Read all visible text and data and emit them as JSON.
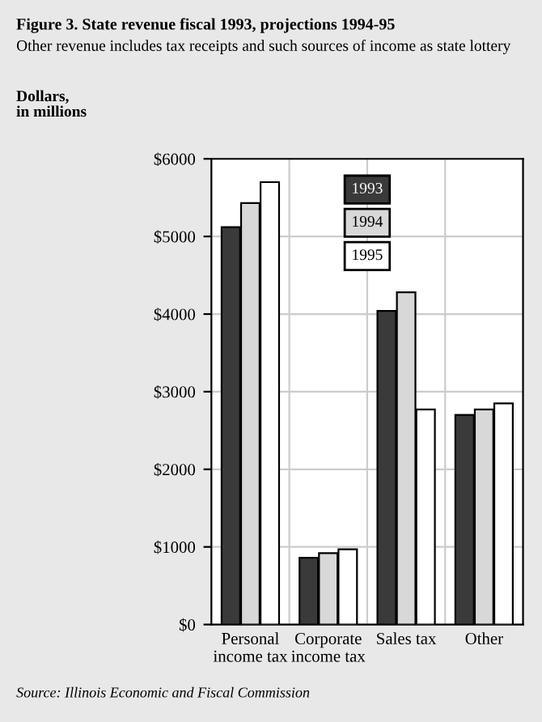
{
  "chart_data": {
    "type": "bar",
    "title": "Figure 3. State revenue fiscal 1993, projections 1994-95",
    "subtitle": "Other revenue includes tax receipts and such sources of income as state lottery",
    "ylabel": "Dollars,\nin millions",
    "categories": [
      "Personal\nincome tax",
      "Corporate\nincome tax",
      "Sales tax",
      "Other"
    ],
    "series": [
      {
        "name": "1993",
        "color": "#3a3a3a",
        "values": [
          5120,
          860,
          4040,
          2700
        ]
      },
      {
        "name": "1994",
        "color": "#d8d8d8",
        "values": [
          5430,
          920,
          4280,
          2770
        ]
      },
      {
        "name": "1995",
        "color": "#ffffff",
        "values": [
          5700,
          970,
          2770,
          2850
        ]
      }
    ],
    "ylim": [
      0,
      6000
    ],
    "yticks": [
      {
        "value": 0,
        "label": "$0"
      },
      {
        "value": 1000,
        "label": "$1000"
      },
      {
        "value": 2000,
        "label": "$2000"
      },
      {
        "value": 3000,
        "label": "$3000"
      },
      {
        "value": 4000,
        "label": "$4000"
      },
      {
        "value": 5000,
        "label": "$5000"
      },
      {
        "value": 6000,
        "label": "$6000"
      }
    ],
    "grid": "y",
    "legend": "top",
    "annotations": [
      "Source: Illinois Economic and Fiscal Commission"
    ]
  }
}
